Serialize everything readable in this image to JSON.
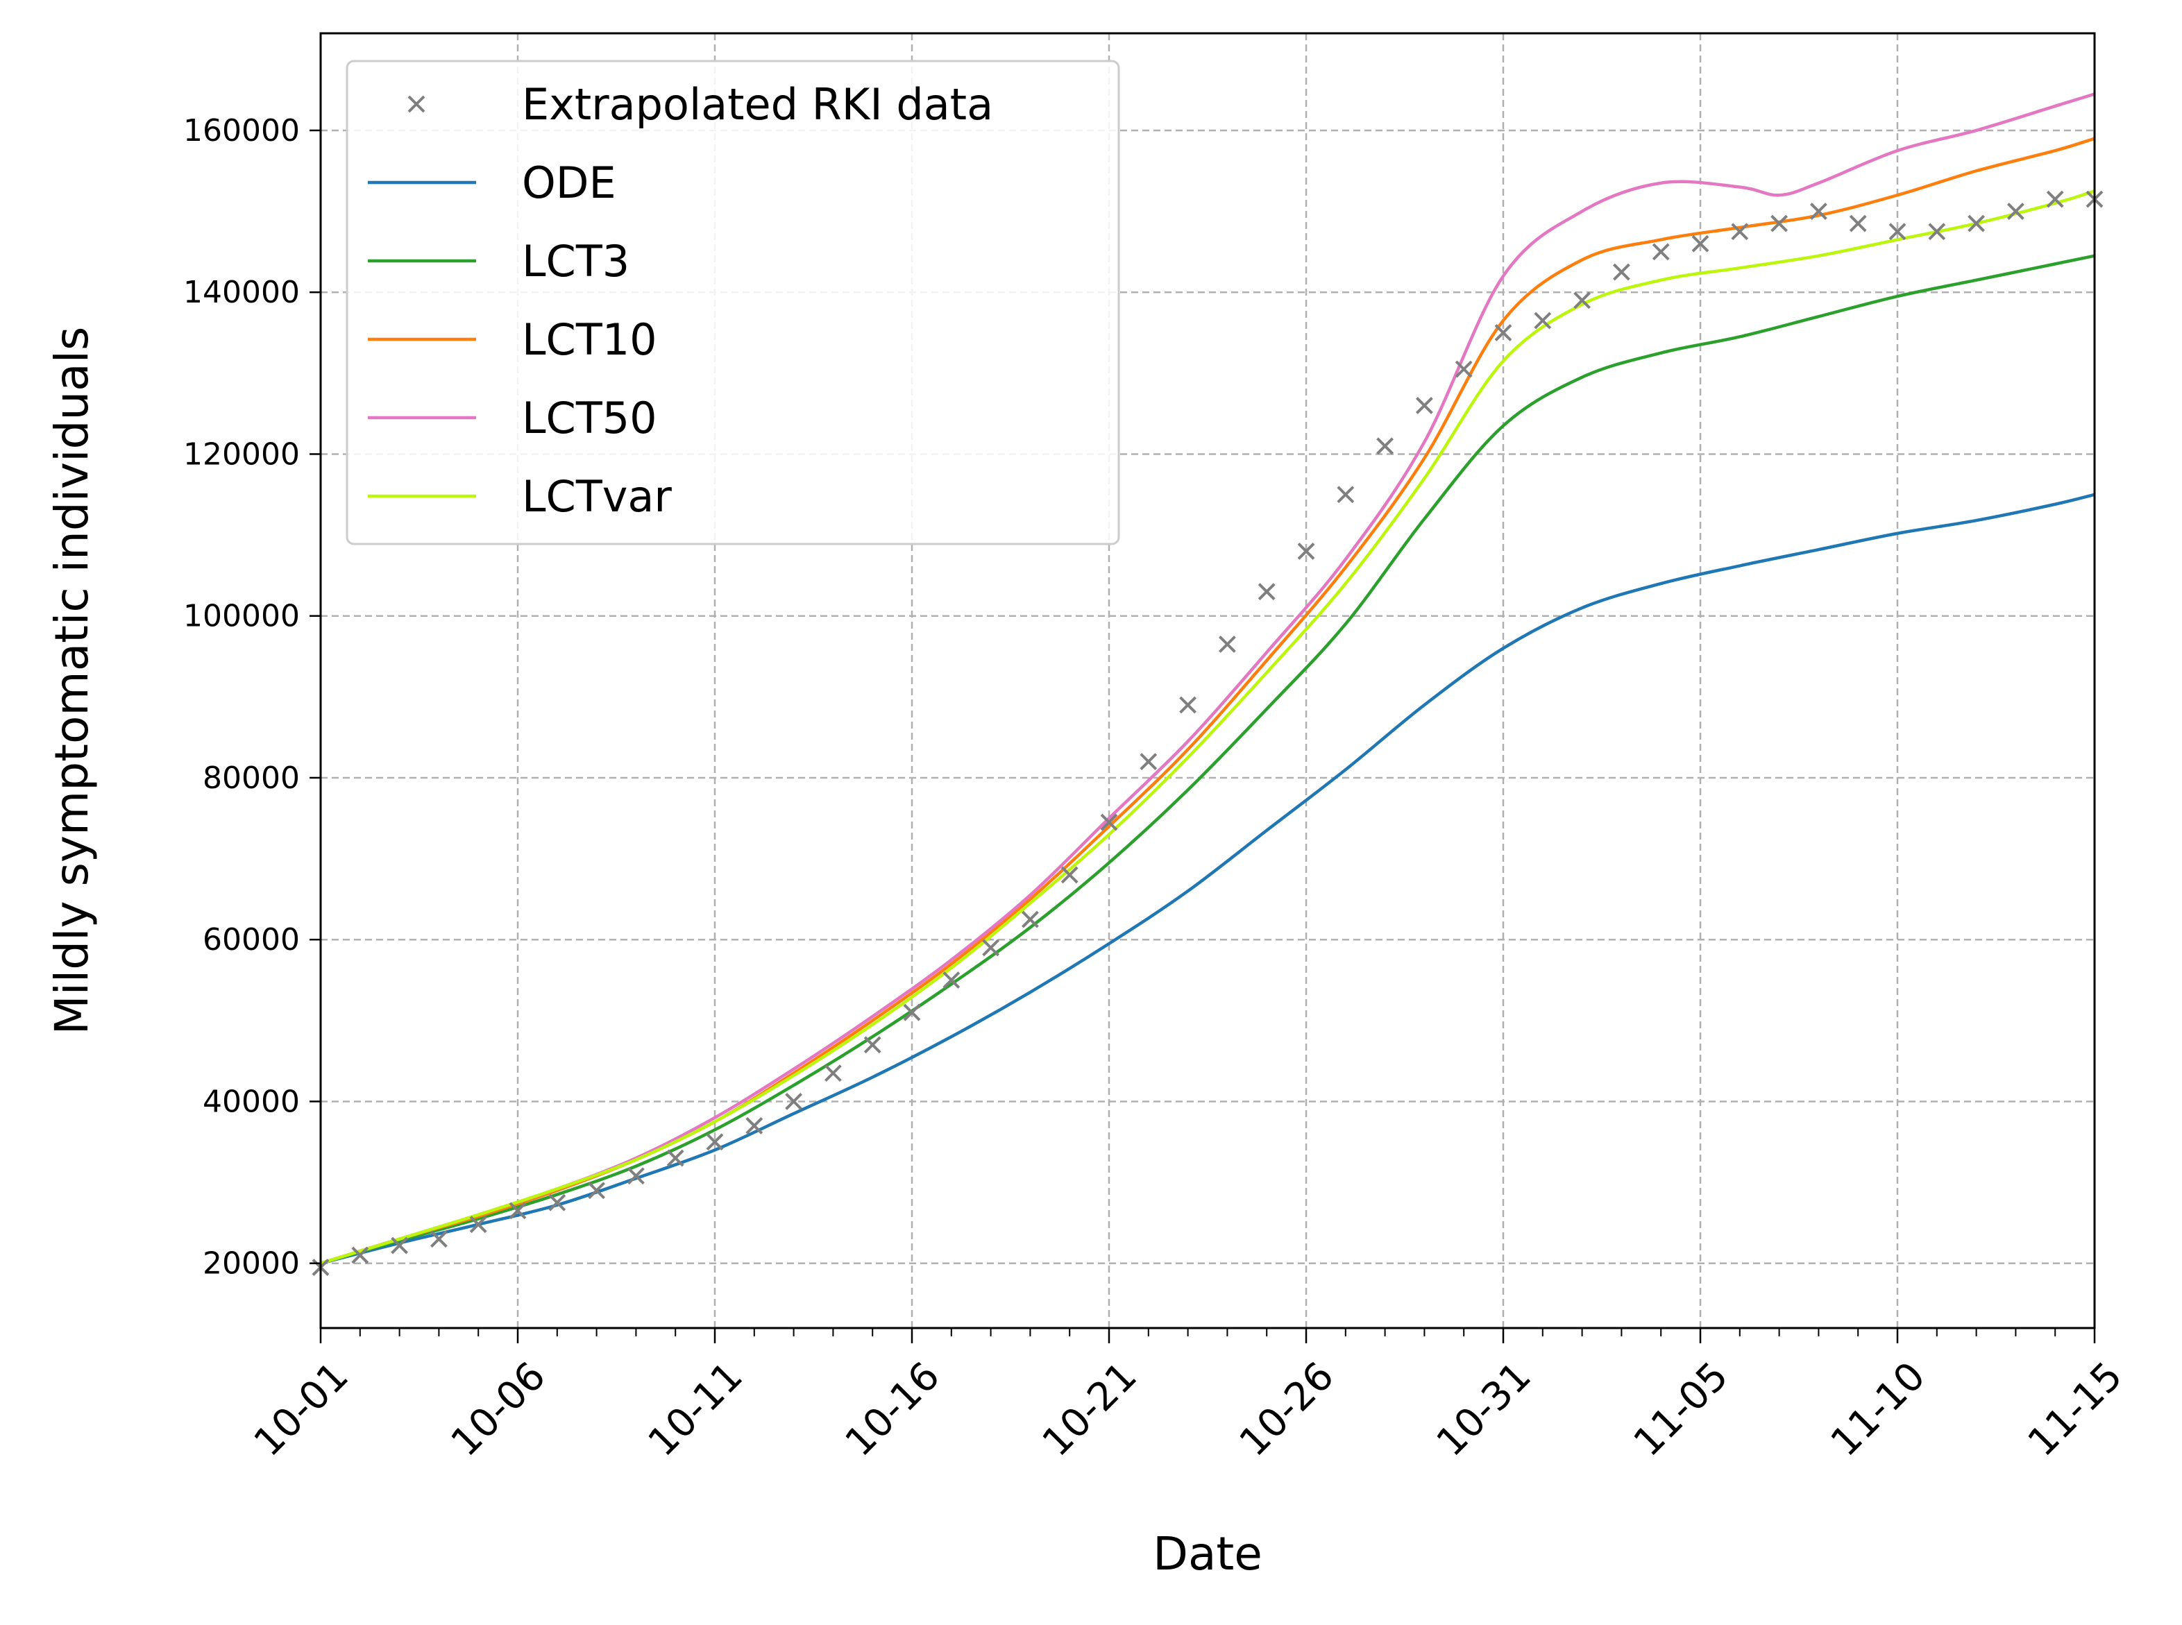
{
  "chart_data": {
    "type": "line",
    "xlabel": "Date",
    "ylabel": "Mildly symptomatic individuals",
    "xticks": [
      "10-01",
      "10-06",
      "10-11",
      "10-16",
      "10-21",
      "10-26",
      "10-31",
      "11-05",
      "11-10",
      "11-15"
    ],
    "yticks": [
      "20000",
      "40000",
      "60000",
      "80000",
      "100000",
      "120000",
      "140000",
      "160000"
    ],
    "xlim": [
      0,
      45
    ],
    "ylim": [
      12000,
      172000
    ],
    "grid": true,
    "legend_position": "top-left",
    "colors": {
      "rki": "#7f7f7f",
      "ode": "#1f77b4",
      "lct3": "#2ca02c",
      "lct10": "#ff7f0e",
      "lct50": "#e377c2",
      "lctvar": "#bcf60c"
    },
    "scatter": {
      "name": "Extrapolated RKI data",
      "x": [
        0,
        1,
        2,
        3,
        4,
        5,
        6,
        7,
        8,
        9,
        10,
        11,
        12,
        13,
        14,
        15,
        16,
        17,
        18,
        19,
        20,
        21,
        22,
        23,
        24,
        25,
        26,
        27,
        28,
        29,
        30,
        31,
        32,
        33,
        34,
        35,
        36,
        37,
        38,
        39,
        40,
        41,
        42,
        43,
        44,
        45
      ],
      "y": [
        19500,
        21000,
        22200,
        23000,
        24800,
        26500,
        27500,
        29000,
        30800,
        33000,
        35000,
        37000,
        40000,
        43500,
        47000,
        51000,
        55000,
        59000,
        62500,
        68000,
        74500,
        82000,
        89000,
        96500,
        103000,
        108000,
        115000,
        121000,
        126000,
        130500,
        135000,
        136500,
        139000,
        142500,
        145000,
        146000,
        147500,
        148500,
        150000,
        148500,
        147500,
        147500,
        148500,
        150000,
        151500,
        151500
      ]
    },
    "series": [
      {
        "name": "ODE",
        "color_key": "ode",
        "x": [
          0,
          2,
          4,
          6,
          8,
          10,
          12,
          14,
          16,
          18,
          20,
          22,
          24,
          26,
          28,
          30,
          32,
          34,
          36,
          38,
          40,
          42,
          44,
          45
        ],
        "y": [
          20000,
          22500,
          24800,
          27200,
          30500,
          34000,
          38500,
          43000,
          48000,
          53500,
          59500,
          66000,
          73500,
          81000,
          89000,
          96000,
          101000,
          104000,
          106200,
          108200,
          110200,
          111800,
          113800,
          115000
        ]
      },
      {
        "name": "LCT3",
        "color_key": "lct3",
        "x": [
          0,
          2,
          4,
          6,
          8,
          10,
          12,
          14,
          16,
          18,
          20,
          22,
          24,
          26,
          28,
          30,
          32,
          34,
          36,
          38,
          40,
          42,
          44,
          45
        ],
        "y": [
          20000,
          22800,
          25500,
          28500,
          32000,
          36500,
          42000,
          48000,
          54500,
          61500,
          69500,
          78500,
          88500,
          99000,
          112000,
          123500,
          129500,
          132500,
          134500,
          137000,
          139500,
          141500,
          143500,
          144500
        ]
      },
      {
        "name": "LCT10",
        "color_key": "lct10",
        "x": [
          0,
          2,
          4,
          6,
          8,
          10,
          12,
          14,
          16,
          18,
          20,
          22,
          24,
          26,
          28,
          30,
          32,
          34,
          36,
          38,
          40,
          42,
          44,
          45
        ],
        "y": [
          20000,
          23000,
          25800,
          29000,
          32800,
          37500,
          43500,
          50000,
          57000,
          65000,
          74000,
          83500,
          94500,
          106000,
          119500,
          136500,
          144000,
          146500,
          148000,
          149500,
          152000,
          155000,
          157500,
          159000
        ]
      },
      {
        "name": "LCT50",
        "color_key": "lct50",
        "x": [
          0,
          2,
          4,
          6,
          8,
          10,
          12,
          14,
          16,
          18,
          20,
          22,
          24,
          26,
          28,
          30,
          32,
          34,
          36,
          37,
          38,
          40,
          42,
          44,
          45
        ],
        "y": [
          20000,
          23000,
          26000,
          29200,
          33000,
          38000,
          44000,
          50500,
          57500,
          65500,
          75000,
          84500,
          95500,
          107000,
          121500,
          142000,
          150000,
          153500,
          153000,
          152000,
          153500,
          157500,
          160000,
          163000,
          164500
        ]
      },
      {
        "name": "LCTvar",
        "color_key": "lctvar",
        "x": [
          0,
          2,
          4,
          6,
          8,
          10,
          12,
          14,
          16,
          18,
          20,
          22,
          24,
          26,
          28,
          30,
          32,
          34,
          36,
          38,
          40,
          42,
          44,
          45
        ],
        "y": [
          20000,
          23000,
          26000,
          29200,
          32800,
          37500,
          43200,
          49500,
          56500,
          64500,
          73000,
          82500,
          93000,
          104000,
          117000,
          131500,
          138500,
          141500,
          143000,
          144500,
          146500,
          148500,
          151000,
          152500
        ]
      }
    ]
  }
}
